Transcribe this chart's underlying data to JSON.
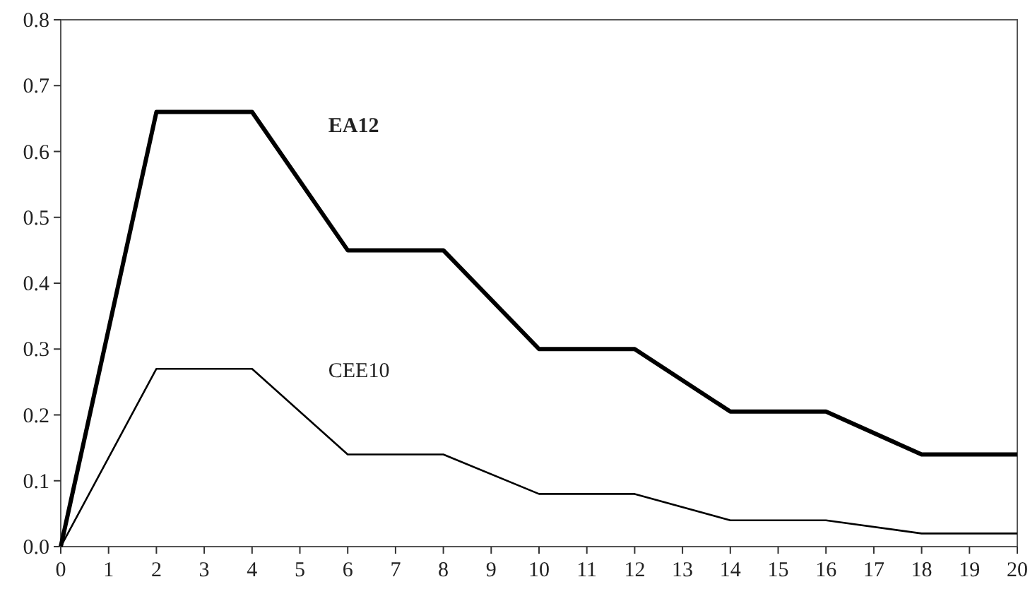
{
  "chart_data": {
    "type": "line",
    "x": [
      0,
      2,
      4,
      6,
      8,
      10,
      12,
      14,
      16,
      18,
      20
    ],
    "series": [
      {
        "name": "EA12",
        "color": "#000000",
        "values": [
          0,
          0.66,
          0.66,
          0.45,
          0.45,
          0.3,
          0.3,
          0.205,
          0.205,
          0.14,
          0.14
        ]
      },
      {
        "name": "CEE10",
        "color": "#000000",
        "values": [
          0,
          0.27,
          0.27,
          0.14,
          0.14,
          0.08,
          0.08,
          0.04,
          0.04,
          0.02,
          0.02
        ]
      }
    ],
    "xlim": [
      0,
      20
    ],
    "xticks": [
      0,
      1,
      2,
      3,
      4,
      5,
      6,
      7,
      8,
      9,
      10,
      11,
      12,
      13,
      14,
      15,
      16,
      17,
      18,
      19,
      20
    ],
    "ylim": [
      0,
      0.8
    ],
    "yticks": [
      {
        "value": 0,
        "label": "0.0"
      },
      0.1,
      0.2,
      0.3,
      0.4,
      0.5,
      0.6,
      0.7,
      0.8
    ],
    "grid": false,
    "marker": "none",
    "line_style": "solid"
  }
}
